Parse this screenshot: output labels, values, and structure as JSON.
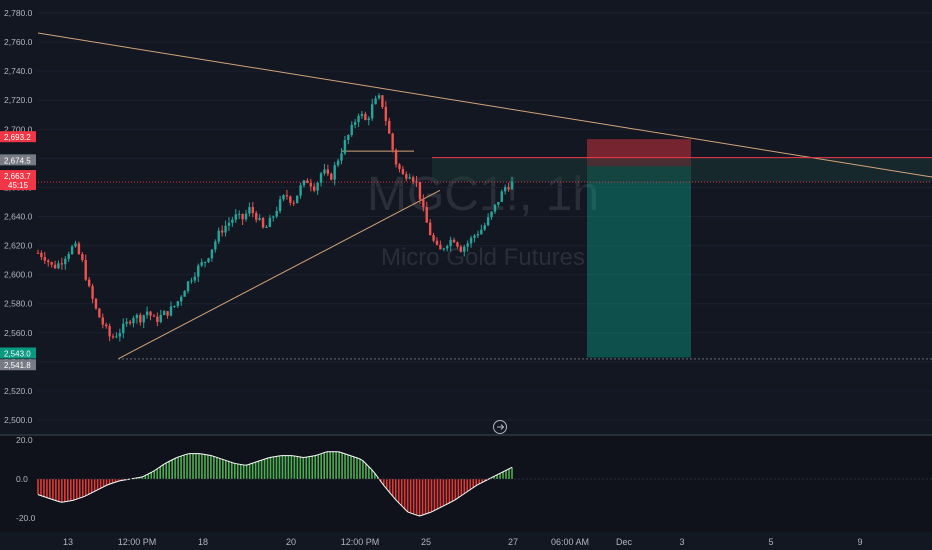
{
  "watermark": {
    "symbol": "MGC1!, 1h",
    "name": "Micro Gold Futures"
  },
  "colors": {
    "up": "#26a69a",
    "down": "#ef5350",
    "osc_up": "#4caf50",
    "osc_down": "#e53935",
    "trendline": "#d1a47a",
    "short_stop": "#f23645",
    "short_target": "#089981"
  },
  "chart_data": {
    "type": "candlestick",
    "price_axis": {
      "ticks": [
        "2,780.0",
        "2,760.0",
        "2,740.0",
        "2,720.0",
        "2,700.0",
        "2,680.0",
        "2,660.0",
        "2,640.0",
        "2,620.0",
        "2,600.0",
        "2,580.0",
        "2,560.0",
        "2,540.0",
        "2,520.0",
        "2,500.0"
      ]
    },
    "time_axis": {
      "ticks": [
        "13",
        "12:00 PM",
        "18",
        "20",
        "12:00 PM",
        "25",
        "27",
        "06:00 AM",
        "Dec",
        "3",
        "5",
        "9"
      ]
    },
    "price_badges": [
      {
        "value": "2,693.2",
        "color": "#f23645"
      },
      {
        "value": "2,674.5",
        "color": "#787b86"
      },
      {
        "value": "2,663.7",
        "sub": "45:15",
        "color": "#f23645"
      },
      {
        "value": "2,543.0",
        "color": "#089981"
      },
      {
        "value": "2,541.8",
        "color": "#787b86"
      }
    ],
    "candle_path_approx": [
      2615,
      2612,
      2605,
      2608,
      2615,
      2620,
      2610,
      2590,
      2575,
      2565,
      2556,
      2560,
      2565,
      2572,
      2570,
      2575,
      2568,
      2572,
      2575,
      2580,
      2590,
      2598,
      2605,
      2610,
      2620,
      2630,
      2635,
      2640,
      2638,
      2645,
      2640,
      2630,
      2638,
      2648,
      2655,
      2650,
      2660,
      2665,
      2660,
      2672,
      2665,
      2678,
      2690,
      2700,
      2712,
      2705,
      2718,
      2722,
      2700,
      2678,
      2668,
      2670,
      2662,
      2640,
      2625,
      2615,
      2622,
      2625,
      2618,
      2622,
      2628,
      2632,
      2640,
      2650,
      2660,
      2663
    ],
    "oscillator": {
      "axis": {
        "ticks": [
          "20.0",
          "0.0",
          "-20.0"
        ]
      },
      "values": [
        -8,
        -10,
        -12,
        -11,
        -9,
        -6,
        -3,
        -1,
        0,
        1,
        4,
        8,
        11,
        13,
        13,
        12,
        10,
        8,
        7,
        9,
        11,
        12,
        12,
        11,
        12,
        14,
        14,
        12,
        10,
        4,
        -4,
        -11,
        -17,
        -19,
        -17,
        -14,
        -11,
        -7,
        -3,
        0,
        3,
        6
      ]
    }
  }
}
